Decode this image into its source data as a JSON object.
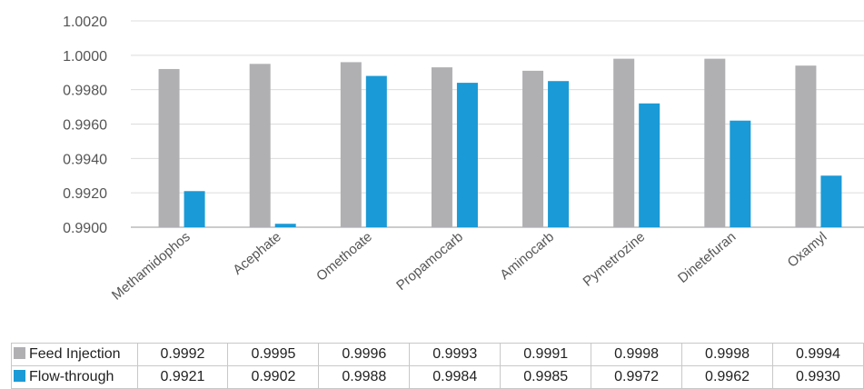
{
  "chart_data": {
    "type": "bar",
    "categories": [
      "Methamidophos",
      "Acephate",
      "Omethoate",
      "Propamocarb",
      "Aminocarb",
      "Pymetrozine",
      "Dinetefuran",
      "Oxamyl"
    ],
    "series": [
      {
        "name": "Feed Injection",
        "color": "#b0b0b3",
        "values": [
          0.9992,
          0.9995,
          0.9996,
          0.9993,
          0.9991,
          0.9998,
          0.9998,
          0.9994
        ],
        "labels": [
          "0.9992",
          "0.9995",
          "0.9996",
          "0.9993",
          "0.9991",
          "0.9998",
          "0.9998",
          "0.9994"
        ]
      },
      {
        "name": "Flow-through",
        "color": "#1a9ad6",
        "values": [
          0.9921,
          0.9902,
          0.9988,
          0.9984,
          0.9985,
          0.9972,
          0.9962,
          0.993
        ],
        "labels": [
          "0.9921",
          "0.9902",
          "0.9988",
          "0.9984",
          "0.9985",
          "0.9972",
          "0.9962",
          "0.9930"
        ]
      }
    ],
    "ylim": [
      0.99,
      1.002
    ],
    "yticks": [
      "0.9900",
      "0.9920",
      "0.9940",
      "0.9960",
      "0.9980",
      "1.0000",
      "1.0020"
    ],
    "grid": true,
    "data_table": true
  }
}
